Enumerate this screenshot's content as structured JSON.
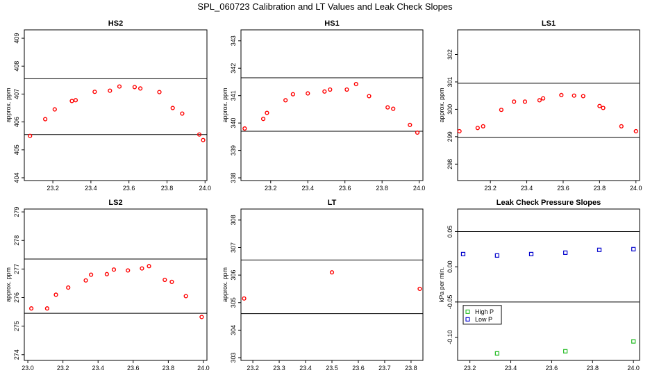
{
  "figure_title": "SPL_060723  Calibration and LT Values and Leak Check Slopes",
  "colors": {
    "points_red": "#ff0000",
    "high_p": "#22bb22",
    "low_p": "#0000cc",
    "lines": "#000000"
  },
  "chart_data": [
    {
      "id": "hs2",
      "type": "scatter",
      "title": "HS2",
      "ylabel": "approx. ppm",
      "xlim": [
        23.05,
        24.01
      ],
      "ylim": [
        403.9,
        409.3
      ],
      "xticks": [
        "23.2",
        "23.4",
        "23.6",
        "23.8",
        "24.0"
      ],
      "yticks": [
        "404",
        "405",
        "406",
        "407",
        "408",
        "409"
      ],
      "hlines": [
        405.55,
        407.55
      ],
      "x": [
        23.08,
        23.16,
        23.21,
        23.3,
        23.32,
        23.42,
        23.5,
        23.55,
        23.63,
        23.66,
        23.76,
        23.83,
        23.88,
        23.97,
        23.99
      ],
      "y": [
        405.5,
        406.1,
        406.45,
        406.75,
        406.78,
        407.08,
        407.12,
        407.27,
        407.25,
        407.2,
        407.07,
        406.5,
        406.3,
        405.55,
        405.35
      ]
    },
    {
      "id": "hs1",
      "type": "scatter",
      "title": "HS1",
      "ylabel": "approx. ppm",
      "xlim": [
        23.04,
        24.02
      ],
      "ylim": [
        337.9,
        343.4
      ],
      "xticks": [
        "23.2",
        "23.4",
        "23.6",
        "23.8",
        "24.0"
      ],
      "yticks": [
        "338",
        "339",
        "340",
        "341",
        "342",
        "343"
      ],
      "hlines": [
        339.7,
        341.65
      ],
      "x": [
        23.06,
        23.16,
        23.18,
        23.28,
        23.32,
        23.4,
        23.49,
        23.52,
        23.61,
        23.66,
        23.73,
        23.83,
        23.86,
        23.95,
        23.99
      ],
      "y": [
        339.8,
        340.15,
        340.37,
        340.83,
        341.05,
        341.08,
        341.15,
        341.22,
        341.22,
        341.42,
        340.98,
        340.57,
        340.52,
        339.93,
        339.65
      ]
    },
    {
      "id": "ls1",
      "type": "scatter",
      "title": "LS1",
      "ylabel": "approx. ppm",
      "xlim": [
        23.02,
        24.02
      ],
      "ylim": [
        297.4,
        302.9
      ],
      "xticks": [
        "23.2",
        "23.4",
        "23.6",
        "23.8",
        "24.0"
      ],
      "yticks": [
        "298",
        "299",
        "300",
        "301",
        "302"
      ],
      "hlines": [
        298.98,
        300.95
      ],
      "x": [
        23.03,
        23.13,
        23.16,
        23.26,
        23.33,
        23.39,
        23.47,
        23.49,
        23.59,
        23.66,
        23.71,
        23.8,
        23.82,
        23.92,
        24.0
      ],
      "y": [
        299.2,
        299.32,
        299.38,
        299.98,
        300.28,
        300.28,
        300.33,
        300.4,
        300.52,
        300.5,
        300.48,
        300.12,
        300.05,
        299.38,
        299.2
      ]
    },
    {
      "id": "ls2",
      "type": "scatter",
      "title": "LS2",
      "ylabel": "approx. ppm",
      "xlim": [
        22.98,
        24.02
      ],
      "ylim": [
        273.8,
        279.1
      ],
      "xticks": [
        "23.0",
        "23.2",
        "23.4",
        "23.6",
        "23.8",
        "24.0"
      ],
      "yticks": [
        "274",
        "275",
        "276",
        "277",
        "278",
        "279"
      ],
      "hlines": [
        275.45,
        277.35
      ],
      "x": [
        23.02,
        23.11,
        23.16,
        23.23,
        23.33,
        23.36,
        23.45,
        23.49,
        23.57,
        23.65,
        23.69,
        23.78,
        23.82,
        23.9,
        23.99
      ],
      "y": [
        275.62,
        275.62,
        276.1,
        276.35,
        276.6,
        276.8,
        276.82,
        276.98,
        276.95,
        277.02,
        277.1,
        276.62,
        276.55,
        276.05,
        275.32
      ]
    },
    {
      "id": "lt",
      "type": "scatter",
      "title": "LT",
      "ylabel": "approx. ppm",
      "xlim": [
        23.155,
        23.845
      ],
      "ylim": [
        302.9,
        308.4
      ],
      "xticks": [
        "23.2",
        "23.3",
        "23.4",
        "23.5",
        "23.6",
        "23.7",
        "23.8"
      ],
      "yticks": [
        "303",
        "304",
        "305",
        "306",
        "307",
        "308"
      ],
      "hlines": [
        304.6,
        306.55
      ],
      "x": [
        23.167,
        23.5,
        23.833
      ],
      "y": [
        305.15,
        306.1,
        305.5
      ]
    },
    {
      "id": "leak",
      "type": "scatter",
      "title": "Leak Check Pressure Slopes",
      "ylabel": "kPa per min.",
      "xlim": [
        23.14,
        24.03
      ],
      "ylim": [
        -0.133,
        0.082
      ],
      "xticks": [
        "23.2",
        "23.4",
        "23.6",
        "23.8",
        "24.0"
      ],
      "yticks": [
        "-0.10",
        "-0.05",
        "0.00",
        "0.05"
      ],
      "hlines": [
        0.05,
        -0.05
      ],
      "series": [
        {
          "name": "High P",
          "color": "#22bb22",
          "x": [
            23.333,
            23.667,
            24.0
          ],
          "y": [
            -0.123,
            -0.12,
            -0.106
          ]
        },
        {
          "name": "Low P",
          "color": "#0000cc",
          "x": [
            23.167,
            23.333,
            23.5,
            23.667,
            23.833,
            24.0
          ],
          "y": [
            0.018,
            0.016,
            0.018,
            0.02,
            0.024,
            0.025
          ]
        }
      ],
      "legend": "bottom-left"
    }
  ]
}
